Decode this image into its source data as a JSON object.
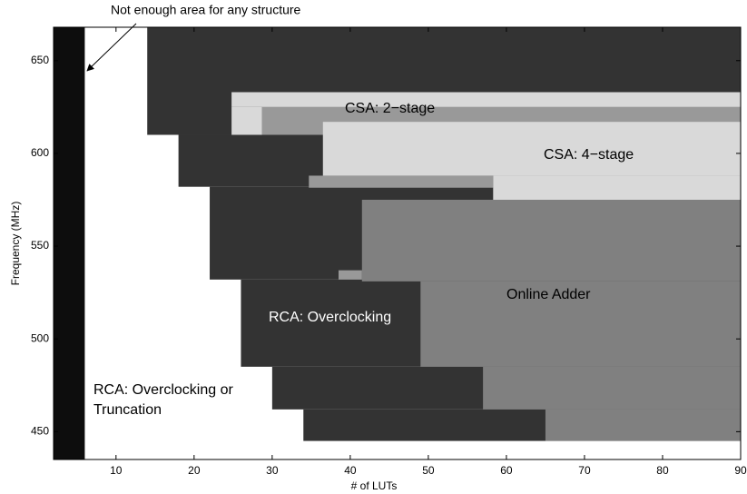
{
  "chart_data": {
    "type": "region",
    "xlabel": "# of LUTs",
    "ylabel": "Frequency (MHz)",
    "xlim": [
      2,
      90
    ],
    "ylim": [
      435,
      668
    ],
    "xticks": [
      10,
      20,
      30,
      40,
      50,
      60,
      70,
      80,
      90
    ],
    "yticks": [
      450,
      500,
      550,
      600,
      650
    ],
    "regions": [
      {
        "color": "#0d0d0d",
        "x": [
          2,
          6
        ],
        "y": [
          435,
          668
        ]
      },
      {
        "color": "#333333",
        "x": [
          14,
          90
        ],
        "y": [
          610,
          668
        ]
      },
      {
        "color": "#333333",
        "x": [
          18,
          90
        ],
        "y": [
          582,
          610
        ]
      },
      {
        "color": "#333333",
        "x": [
          22,
          90
        ],
        "y": [
          532,
          582
        ]
      },
      {
        "color": "#333333",
        "x": [
          26,
          90
        ],
        "y": [
          485,
          532
        ]
      },
      {
        "color": "#333333",
        "x": [
          30,
          90
        ],
        "y": [
          462,
          485
        ]
      },
      {
        "color": "#333333",
        "x": [
          34,
          90
        ],
        "y": [
          445,
          462
        ]
      },
      {
        "color": "#808080",
        "x": [
          41.5,
          90
        ],
        "y": [
          531,
          575
        ]
      },
      {
        "color": "#808080",
        "x": [
          49,
          90
        ],
        "y": [
          485,
          531
        ]
      },
      {
        "color": "#808080",
        "x": [
          57,
          90
        ],
        "y": [
          462,
          485
        ]
      },
      {
        "color": "#808080",
        "x": [
          65,
          90
        ],
        "y": [
          445,
          462
        ]
      },
      {
        "color": "#999999",
        "x": [
          38.5,
          41.5
        ],
        "y": [
          532,
          537
        ]
      },
      {
        "color": "#999999",
        "x": [
          28.7,
          90
        ],
        "y": [
          610,
          625
        ]
      },
      {
        "color": "#999999",
        "x": [
          34.7,
          58.3
        ],
        "y": [
          581.5,
          588
        ]
      },
      {
        "color": "#d9d9d9",
        "x": [
          36.5,
          90
        ],
        "y": [
          588,
          617
        ]
      },
      {
        "color": "#d9d9d9",
        "x": [
          58.3,
          90
        ],
        "y": [
          575,
          588
        ]
      },
      {
        "color": "#d9d9d9",
        "x": [
          24.8,
          90
        ],
        "y": [
          625,
          633
        ]
      },
      {
        "color": "#d9d9d9",
        "x": [
          24.8,
          28.7
        ],
        "y": [
          610,
          625
        ]
      }
    ],
    "annotations": [
      "Not enough area for any structure",
      "CSA: 2−stage",
      "CSA: 4−stage",
      "Online Adder",
      "RCA: Overclocking",
      "RCA: Overclocking or",
      "Truncation"
    ]
  }
}
